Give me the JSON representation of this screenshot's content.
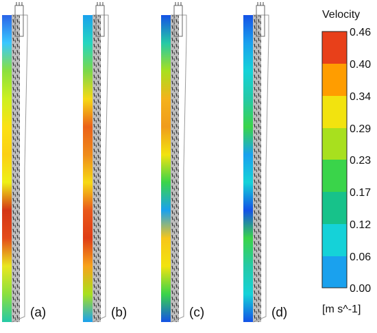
{
  "legend": {
    "title": "Velocity",
    "ticks": [
      "0.46",
      "0.40",
      "0.34",
      "0.29",
      "0.23",
      "0.17",
      "0.12",
      "0.06",
      "0.00"
    ],
    "unit": "[m s^-1]",
    "colors": [
      "#e8401a",
      "#ff9d00",
      "#f2e30f",
      "#a8e01e",
      "#3ad44a",
      "#17c28a",
      "#15d2d8",
      "#1aa1ee",
      "#1452e6"
    ]
  },
  "panels": [
    {
      "label": "(a)",
      "profile": [
        "#2a64e8",
        "#3ac8ff",
        "#8be03e",
        "#cdf01e",
        "#fbe114",
        "#fbd015",
        "#eef016",
        "#d43616",
        "#e44c1a",
        "#e9e720",
        "#8be03e",
        "#25c9a6"
      ]
    },
    {
      "label": "(b)",
      "profile": [
        "#1aa1ee",
        "#25d6c0",
        "#7ad84a",
        "#f6d915",
        "#eb6118",
        "#ef8b1a",
        "#f6d915",
        "#e9581a",
        "#df3d16",
        "#f7a31a",
        "#a8e01e",
        "#1aa1ee"
      ]
    },
    {
      "label": "(c)",
      "profile": [
        "#1452e6",
        "#25c9a6",
        "#a8e01e",
        "#f4b21c",
        "#f09c1c",
        "#f2e30f",
        "#3ad44a",
        "#1aa1ee",
        "#f7c61a",
        "#f2e30f",
        "#3ad44a",
        "#1452e6"
      ]
    },
    {
      "label": "(d)",
      "profile": [
        "#1452e6",
        "#1aa1ee",
        "#15d2d8",
        "#25c9a6",
        "#3ad44a",
        "#1aa1ee",
        "#15d2d8",
        "#1452e6",
        "#3ad44a",
        "#25c9a6",
        "#15d2d8",
        "#1452e6"
      ]
    }
  ]
}
